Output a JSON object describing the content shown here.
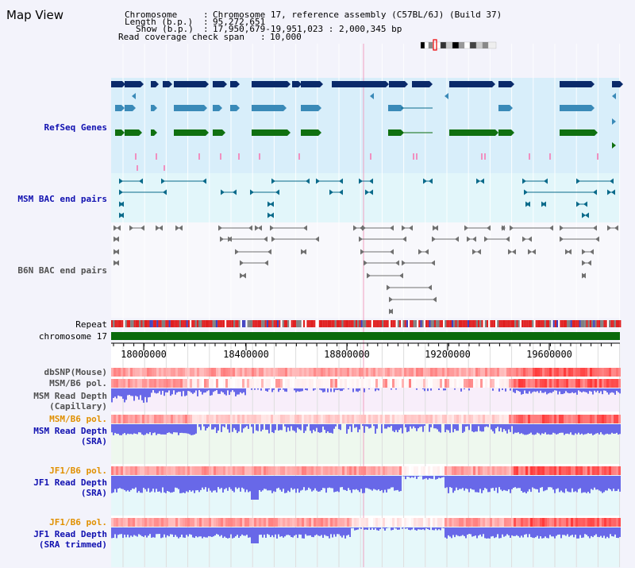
{
  "title": "Map View",
  "info": {
    "chromosome_key": "Chromosome",
    "chromosome_val": "Chromosome 17, reference assembly (C57BL/6J) (Build 37)",
    "length_key": "Length (b.p.)",
    "length_val": "95,272,651",
    "show_key": "Show (b.p.)",
    "show_val": "17,950,679-19,951,023 : 2,000,345 bp",
    "coverage_key": "Read coverage check span",
    "coverage_val": "10,000"
  },
  "tracks": {
    "refseq": "RefSeq Genes",
    "msm_bac": "MSM BAC end pairs",
    "b6n_bac": "B6N BAC end pairs",
    "repeat": "Repeat",
    "chromosome": "chromosome 17",
    "dbsnp": "dbSNP(Mouse)",
    "msm_b6_pol_1": "MSM/B6 pol.",
    "msm_depth_cap_1": "MSM Read Depth",
    "msm_depth_cap_2": "(Capillary)",
    "msm_b6_pol_2": "MSM/B6 pol.",
    "msm_depth_sra_1": "MSM Read Depth",
    "msm_depth_sra_2": "(SRA)",
    "jf1_b6_pol_1": "JF1/B6 pol.",
    "jf1_depth_sra_1": "JF1 Read Depth",
    "jf1_depth_sra_2": "(SRA)",
    "jf1_b6_pol_2": "JF1/B6 pol.",
    "jf1_depth_trim_1": "JF1 Read Depth",
    "jf1_depth_trim_2": "(SRA trimmed)"
  },
  "axis": {
    "ticks": [
      "18000000",
      "18400000",
      "18800000",
      "19200000",
      "19600000"
    ]
  },
  "colors": {
    "refseq_dark": "#0a2a6a",
    "refseq_mid": "#3a8ab8",
    "refseq_green": "#107010",
    "refseq_pink": "#f090c0",
    "msm_bac": "#0a6a8a",
    "b6n_bac": "#707070",
    "chromosome": "#0a6a0a",
    "depth": "#6868e8",
    "pol": "#f08080"
  }
}
